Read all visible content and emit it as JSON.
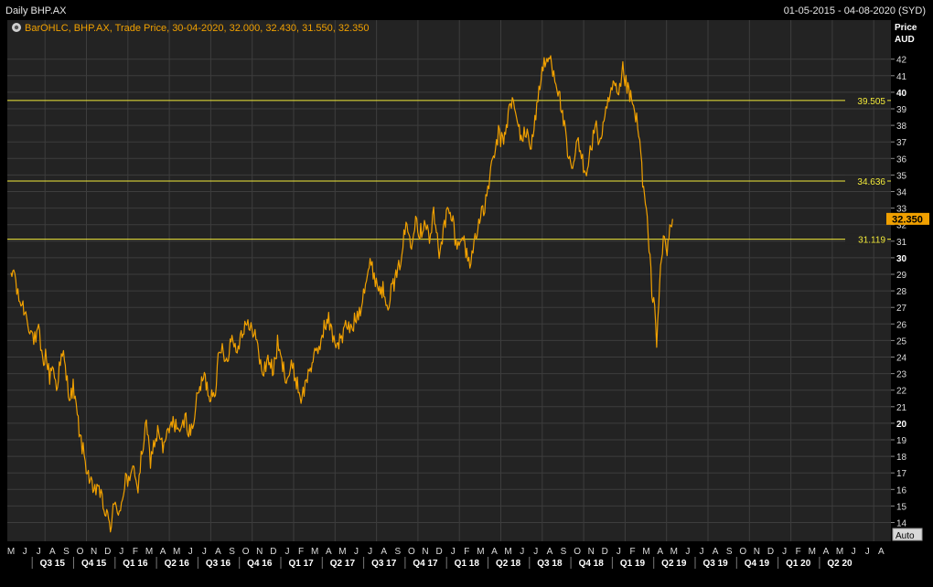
{
  "header": {
    "title": "Daily BHP.AX",
    "date_range": "01-05-2015 - 04-08-2020 (SYD)"
  },
  "legend": {
    "text": "BarOHLC, BHP.AX, Trade Price, 30-04-2020, 32.000, 32.430, 31.550, 32.350"
  },
  "axis": {
    "price_label_1": "Price",
    "price_label_2": "AUD",
    "auto_label": "Auto"
  },
  "colors": {
    "background": "#000000",
    "plot_bg": "#232323",
    "grid": "#3d3d3d",
    "price_line": "#f0a000",
    "level_line": "#f2ea3a",
    "last_price_box": "#f0a000"
  },
  "chart_data": {
    "type": "line",
    "title": "Daily BHP.AX",
    "ylabel": "Price AUD",
    "ylim": [
      13.5,
      43
    ],
    "x_start": "2015-05",
    "months": [
      "M",
      "J",
      "J",
      "A",
      "S",
      "O",
      "N",
      "D",
      "J",
      "F",
      "M",
      "A",
      "M",
      "J",
      "J",
      "A",
      "S",
      "O",
      "N",
      "D",
      "J",
      "F",
      "M",
      "A",
      "M",
      "J",
      "J",
      "A",
      "S",
      "O",
      "N",
      "D",
      "J",
      "F",
      "M",
      "A",
      "M",
      "J",
      "J",
      "A",
      "S",
      "O",
      "N",
      "D",
      "J",
      "F",
      "M",
      "A",
      "M",
      "J",
      "J",
      "A",
      "S",
      "O",
      "N",
      "D",
      "J",
      "F",
      "M",
      "A",
      "M",
      "J",
      "J",
      "A"
    ],
    "quarters": [
      "Q3 15",
      "Q4 15",
      "Q1 16",
      "Q2 16",
      "Q3 16",
      "Q4 16",
      "Q1 17",
      "Q2 17",
      "Q3 17",
      "Q4 17",
      "Q1 18",
      "Q2 18",
      "Q3 18",
      "Q4 18",
      "Q1 19",
      "Q2 19",
      "Q3 19",
      "Q4 19",
      "Q1 20",
      "Q2 20"
    ],
    "y_ticks": [
      14,
      15,
      16,
      17,
      18,
      19,
      20,
      21,
      22,
      23,
      24,
      25,
      26,
      27,
      28,
      29,
      30,
      31,
      32,
      33,
      34,
      35,
      36,
      37,
      38,
      39,
      40,
      41,
      42
    ],
    "bold_ticks": [
      20,
      30,
      40
    ],
    "series": [
      {
        "values": [
          [
            0,
            28.6
          ],
          [
            0.2,
            29.4
          ],
          [
            0.5,
            27.6
          ],
          [
            0.8,
            27.2
          ],
          [
            1,
            26.8
          ],
          [
            1.3,
            26.0
          ],
          [
            1.5,
            25.4
          ],
          [
            1.8,
            24.9
          ],
          [
            2,
            25.6
          ],
          [
            2.3,
            23.6
          ],
          [
            2.5,
            24.2
          ],
          [
            2.8,
            22.8
          ],
          [
            3,
            23.6
          ],
          [
            3.3,
            22.1
          ],
          [
            3.5,
            23.4
          ],
          [
            3.8,
            24.1
          ],
          [
            4,
            22.8
          ],
          [
            4.3,
            21.5
          ],
          [
            4.5,
            22.2
          ],
          [
            4.8,
            20.4
          ],
          [
            5,
            19.2
          ],
          [
            5.3,
            18.0
          ],
          [
            5.6,
            16.9
          ],
          [
            6,
            15.6
          ],
          [
            6.3,
            16.4
          ],
          [
            6.6,
            15.2
          ],
          [
            7,
            14.2
          ],
          [
            7.2,
            13.7
          ],
          [
            7.4,
            15.0
          ],
          [
            7.7,
            14.6
          ],
          [
            8,
            15.2
          ],
          [
            8.3,
            16.8
          ],
          [
            8.6,
            16.2
          ],
          [
            8.9,
            17.6
          ],
          [
            9.2,
            15.9
          ],
          [
            9.5,
            18.4
          ],
          [
            9.8,
            19.8
          ],
          [
            10.1,
            17.8
          ],
          [
            10.4,
            18.9
          ],
          [
            10.7,
            19.6
          ],
          [
            11,
            18.4
          ],
          [
            11.3,
            19.2
          ],
          [
            11.6,
            19.9
          ],
          [
            12,
            20.0
          ],
          [
            12.3,
            19.2
          ],
          [
            12.6,
            20.4
          ],
          [
            13,
            19.3
          ],
          [
            13.3,
            20.6
          ],
          [
            13.6,
            22.0
          ],
          [
            14,
            22.8
          ],
          [
            14.4,
            21.6
          ],
          [
            14.8,
            22.2
          ],
          [
            15,
            23.7
          ],
          [
            15.3,
            24.6
          ],
          [
            15.6,
            23.8
          ],
          [
            16,
            25.3
          ],
          [
            16.3,
            24.4
          ],
          [
            16.6,
            25.2
          ],
          [
            17,
            26.2
          ],
          [
            17.3,
            25.5
          ],
          [
            17.6,
            25.8
          ],
          [
            18,
            23.8
          ],
          [
            18.3,
            23.0
          ],
          [
            18.6,
            24.0
          ],
          [
            19,
            23.1
          ],
          [
            19.3,
            24.8
          ],
          [
            19.6,
            23.6
          ],
          [
            20,
            22.7
          ],
          [
            20.3,
            23.4
          ],
          [
            20.6,
            22.8
          ],
          [
            21,
            21.5
          ],
          [
            21.3,
            22.2
          ],
          [
            21.6,
            23.3
          ],
          [
            22,
            24.0
          ],
          [
            22.3,
            24.5
          ],
          [
            22.6,
            25.7
          ],
          [
            23,
            26.2
          ],
          [
            23.3,
            25.3
          ],
          [
            23.6,
            24.8
          ],
          [
            24,
            25.2
          ],
          [
            24.3,
            26.0
          ],
          [
            24.6,
            25.6
          ],
          [
            25,
            26.4
          ],
          [
            25.3,
            27.0
          ],
          [
            25.6,
            28.4
          ],
          [
            26,
            29.6
          ],
          [
            26.3,
            29.0
          ],
          [
            26.6,
            28.2
          ],
          [
            27,
            28.0
          ],
          [
            27.3,
            27.3
          ],
          [
            27.6,
            28.2
          ],
          [
            28,
            29.0
          ],
          [
            28.3,
            30.4
          ],
          [
            28.6,
            32.0
          ],
          [
            29,
            31.0
          ],
          [
            29.3,
            32.6
          ],
          [
            29.6,
            31.4
          ],
          [
            30,
            32.4
          ],
          [
            30.3,
            31.0
          ],
          [
            30.6,
            32.6
          ],
          [
            31,
            30.4
          ],
          [
            31.3,
            31.6
          ],
          [
            31.6,
            32.8
          ],
          [
            32,
            32.2
          ],
          [
            32.3,
            30.4
          ],
          [
            32.6,
            31.6
          ],
          [
            33,
            30.2
          ],
          [
            33.3,
            29.6
          ],
          [
            33.6,
            31.4
          ],
          [
            34,
            32.4
          ],
          [
            34.3,
            33.0
          ],
          [
            34.6,
            34.6
          ],
          [
            35,
            36.2
          ],
          [
            35.3,
            37.5
          ],
          [
            35.6,
            36.9
          ],
          [
            36,
            38.6
          ],
          [
            36.3,
            39.6
          ],
          [
            36.6,
            38.3
          ],
          [
            37,
            37.2
          ],
          [
            37.3,
            37.6
          ],
          [
            37.6,
            36.7
          ],
          [
            38,
            38.6
          ],
          [
            38.3,
            40.6
          ],
          [
            38.6,
            41.6
          ],
          [
            39,
            42.1
          ],
          [
            39.3,
            41.3
          ],
          [
            39.6,
            40.2
          ],
          [
            40,
            38.3
          ],
          [
            40.3,
            36.2
          ],
          [
            40.6,
            35.1
          ],
          [
            41,
            37.0
          ],
          [
            41.3,
            36.1
          ],
          [
            41.6,
            35.2
          ],
          [
            42,
            36.6
          ],
          [
            42.3,
            38.0
          ],
          [
            42.6,
            37.0
          ],
          [
            43,
            38.3
          ],
          [
            43.3,
            39.5
          ],
          [
            43.6,
            40.4
          ],
          [
            44,
            39.6
          ],
          [
            44.3,
            41.3
          ],
          [
            44.6,
            40.3
          ],
          [
            45,
            39.2
          ],
          [
            45.3,
            38.3
          ],
          [
            45.6,
            36.3
          ],
          [
            45.8,
            34.0
          ],
          [
            46,
            32.8
          ],
          [
            46.2,
            30.5
          ],
          [
            46.4,
            28.2
          ],
          [
            46.6,
            27.0
          ],
          [
            46.75,
            25.0
          ],
          [
            46.9,
            27.5
          ],
          [
            47.1,
            29.8
          ],
          [
            47.3,
            31.4
          ],
          [
            47.5,
            30.2
          ],
          [
            47.7,
            31.8
          ],
          [
            47.9,
            32.35
          ]
        ]
      }
    ],
    "levels": [
      {
        "value": 39.505,
        "label": "39.505"
      },
      {
        "value": 34.636,
        "label": "34.636"
      },
      {
        "value": 31.119,
        "label": "31.119"
      }
    ],
    "last_price": {
      "value": 32.35,
      "label": "32.350"
    }
  }
}
